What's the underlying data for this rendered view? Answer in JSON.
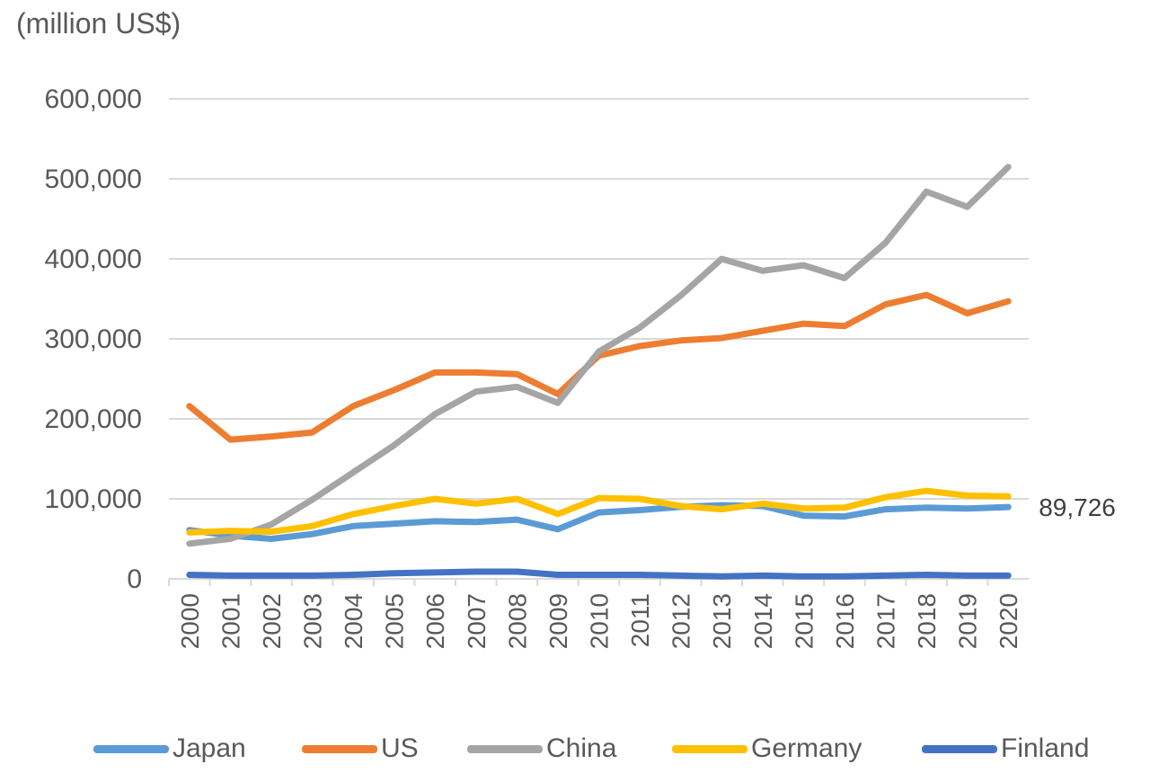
{
  "chart_data": {
    "type": "line",
    "unit_label": "(million US$)",
    "x": [
      "2000",
      "2001",
      "2002",
      "2003",
      "2004",
      "2005",
      "2006",
      "2007",
      "2008",
      "2009",
      "2010",
      "2011",
      "2012",
      "2013",
      "2014",
      "2015",
      "2016",
      "2017",
      "2018",
      "2019",
      "2020"
    ],
    "ylim": [
      0,
      600000
    ],
    "yticks": [
      0,
      100000,
      200000,
      300000,
      400000,
      500000,
      600000
    ],
    "ytick_labels": [
      "0",
      "100,000",
      "200,000",
      "300,000",
      "400,000",
      "500,000",
      "600,000"
    ],
    "grid": true,
    "legend_position": "bottom",
    "end_label": "89,726",
    "series": [
      {
        "name": "Japan",
        "color": "#5B9BD5",
        "values": [
          61000,
          54000,
          50000,
          56000,
          66000,
          69000,
          72000,
          71000,
          74000,
          62000,
          83000,
          86000,
          90000,
          92000,
          91000,
          79000,
          78000,
          87000,
          89000,
          88000,
          89726
        ]
      },
      {
        "name": "US",
        "color": "#ED7D31",
        "values": [
          216000,
          174000,
          178000,
          183000,
          216000,
          236000,
          258000,
          258000,
          256000,
          231000,
          279000,
          291000,
          298000,
          301000,
          310000,
          319000,
          316000,
          343000,
          355000,
          332000,
          347000
        ]
      },
      {
        "name": "China",
        "color": "#A5A5A5",
        "values": [
          44000,
          50000,
          68000,
          99000,
          133000,
          167000,
          206000,
          234000,
          240000,
          220000,
          284000,
          314000,
          354000,
          400000,
          385000,
          392000,
          376000,
          420000,
          484000,
          465000,
          515000
        ]
      },
      {
        "name": "Germany",
        "color": "#FFC000",
        "values": [
          58000,
          60000,
          59000,
          66000,
          81000,
          91000,
          100000,
          94000,
          100000,
          81000,
          101000,
          100000,
          91000,
          87000,
          94000,
          88000,
          89000,
          102000,
          110000,
          104000,
          103000
        ]
      },
      {
        "name": "Finland",
        "color": "#4472C4",
        "values": [
          5000,
          4000,
          4000,
          4000,
          5000,
          7000,
          8000,
          9000,
          9000,
          5000,
          5000,
          5000,
          4000,
          3000,
          4000,
          3000,
          3000,
          4000,
          5000,
          4000,
          4000
        ]
      }
    ]
  }
}
